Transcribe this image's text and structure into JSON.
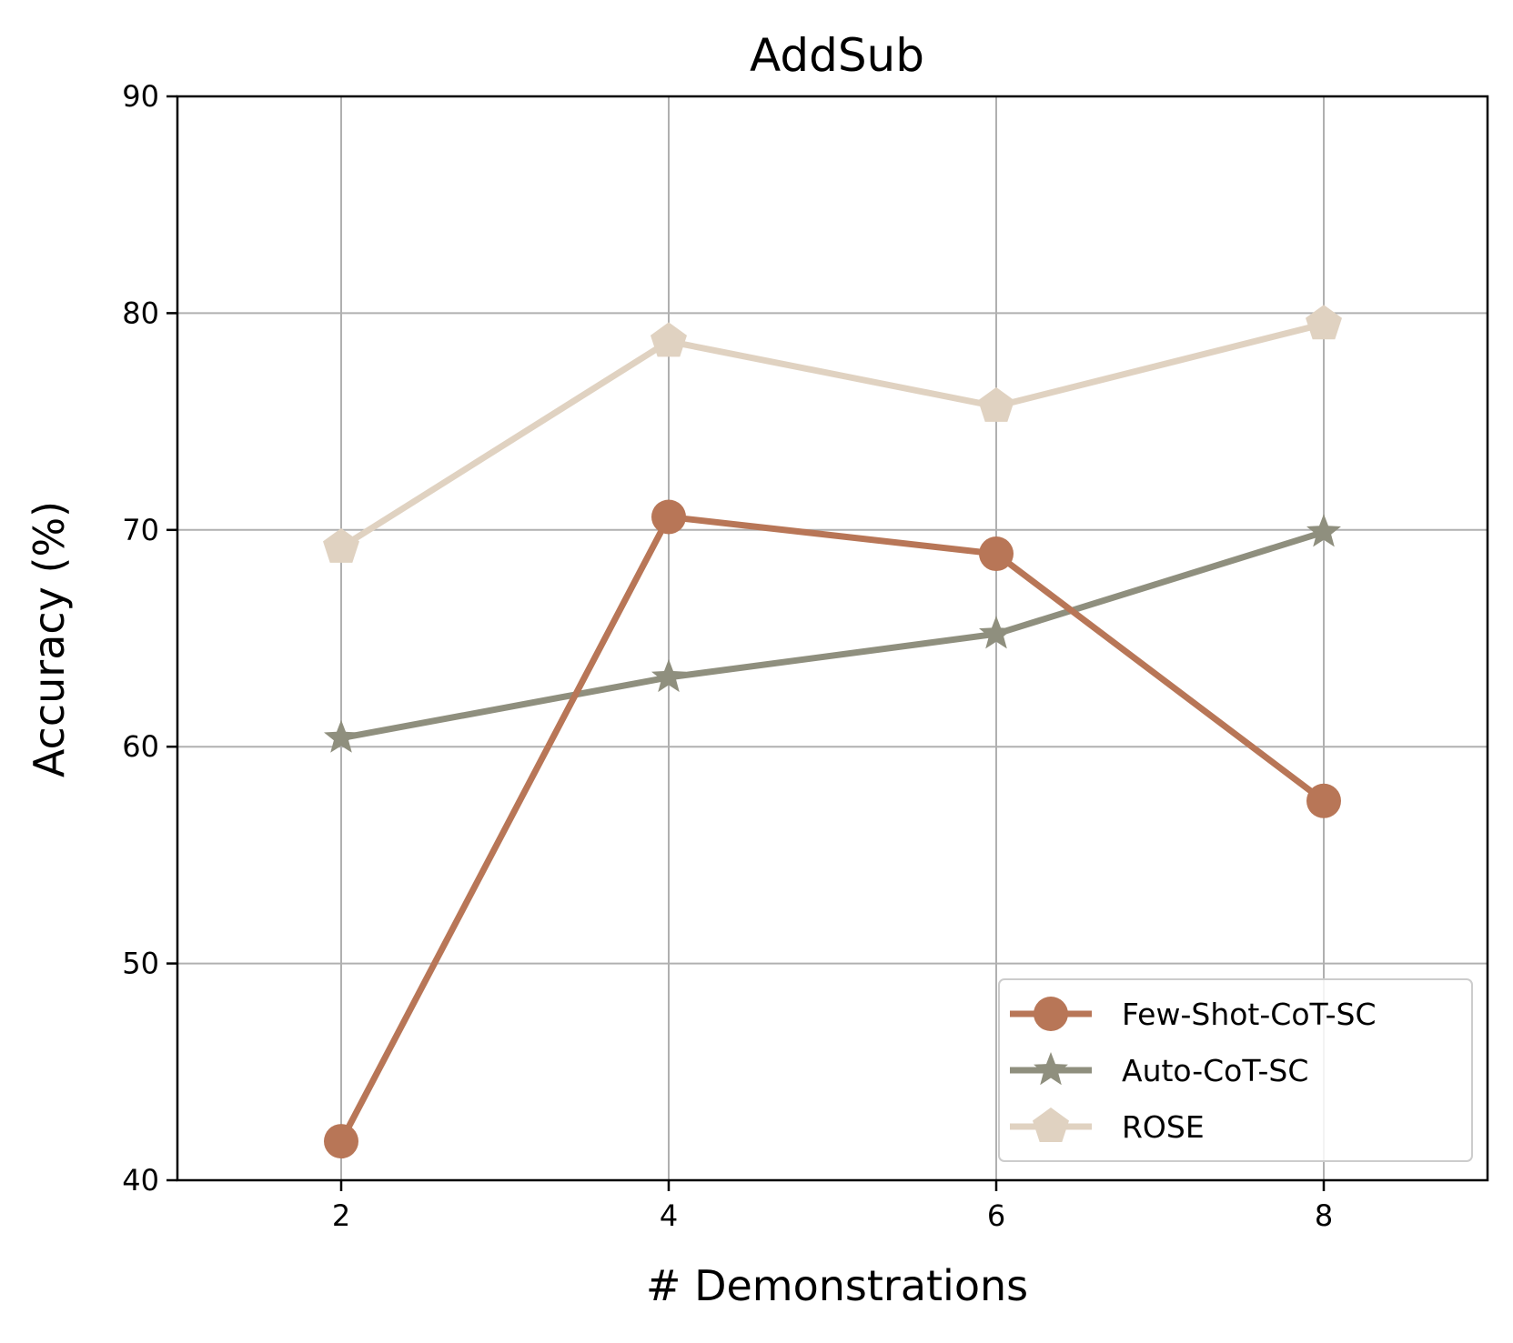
{
  "chart_data": {
    "type": "line",
    "title": "AddSub",
    "xlabel": "# Demonstrations",
    "ylabel": "Accuracy (%)",
    "x": [
      2,
      4,
      6,
      8
    ],
    "xlim": [
      1,
      9
    ],
    "ylim": [
      40,
      90
    ],
    "xticks": [
      2,
      4,
      6,
      8
    ],
    "yticks": [
      40,
      50,
      60,
      70,
      80,
      90
    ],
    "grid": true,
    "legend_position": "lower-right",
    "series": [
      {
        "name": "Few-Shot-CoT-SC",
        "marker": "circle",
        "color": "#b87657",
        "values": [
          41.8,
          70.6,
          68.9,
          57.5
        ]
      },
      {
        "name": "Auto-CoT-SC",
        "marker": "star",
        "color": "#8f8f7e",
        "values": [
          60.4,
          63.2,
          65.2,
          69.9
        ]
      },
      {
        "name": "ROSE",
        "marker": "pentagon",
        "color": "#e0d2c1",
        "values": [
          69.2,
          78.7,
          75.7,
          79.5
        ]
      }
    ]
  }
}
